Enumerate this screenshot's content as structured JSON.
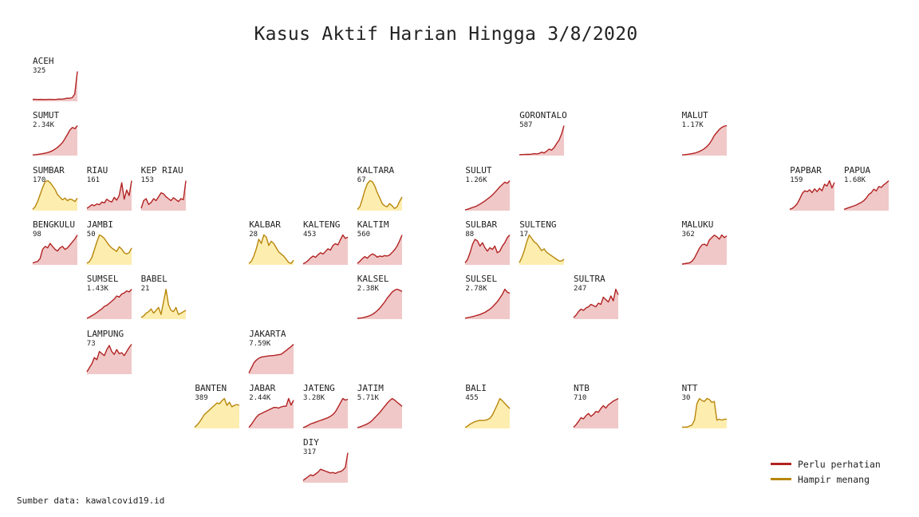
{
  "title": "Kasus Aktif Harian Hingga 3/8/2020",
  "source": "Sumber data: kawalcovid19.id",
  "colors": {
    "perhatian_line": "#b22222",
    "perhatian_fill": "#f0c8c8",
    "menang_line": "#b8860b",
    "menang_fill": "#fdeeb0"
  },
  "legend": [
    {
      "label": "Perlu perhatian",
      "status": "perhatian"
    },
    {
      "label": "Hampir menang",
      "status": "menang"
    }
  ],
  "chart_data": {
    "type": "area",
    "layout": "small multiples arranged as a tile map of Indonesian provinces",
    "title": "Kasus Aktif Harian Hingga 3/8/2020",
    "grid": false,
    "legend_position": "bottom-right",
    "series": [
      {
        "name": "ACEH",
        "value_label": "325",
        "status": "perhatian",
        "grid_col": 0,
        "grid_row": 0,
        "values": [
          18,
          17,
          16,
          17,
          16,
          16,
          17,
          17,
          16,
          17,
          20,
          19,
          23,
          30,
          29,
          35,
          75,
          325
        ]
      },
      {
        "name": "SUMUT",
        "value_label": "2.34K",
        "status": "perhatian",
        "grid_col": 0,
        "grid_row": 1,
        "values": [
          20,
          40,
          60,
          90,
          120,
          160,
          210,
          270,
          360,
          480,
          620,
          800,
          1000,
          1300,
          1650,
          2000,
          2200,
          2100,
          2340
        ]
      },
      {
        "name": "GORONTALO",
        "value_label": "587",
        "status": "perhatian",
        "grid_col": 9,
        "grid_row": 1,
        "values": [
          10,
          12,
          15,
          18,
          16,
          20,
          30,
          25,
          35,
          60,
          45,
          80,
          120,
          100,
          150,
          230,
          300,
          420,
          587
        ]
      },
      {
        "name": "MALUT",
        "value_label": "1.17K",
        "status": "perhatian",
        "grid_col": 12,
        "grid_row": 1,
        "values": [
          10,
          20,
          30,
          45,
          60,
          80,
          110,
          150,
          200,
          260,
          340,
          450,
          600,
          780,
          900,
          1020,
          1100,
          1150,
          1170
        ]
      },
      {
        "name": "SUMBAR",
        "value_label": "170",
        "status": "menang",
        "grid_col": 0,
        "grid_row": 2,
        "values": [
          5,
          20,
          50,
          90,
          130,
          165,
          170,
          160,
          140,
          120,
          90,
          75,
          60,
          70,
          55,
          65,
          60,
          50,
          70
        ]
      },
      {
        "name": "RIAU",
        "value_label": "161",
        "status": "perhatian",
        "grid_col": 1,
        "grid_row": 2,
        "values": [
          10,
          20,
          30,
          25,
          35,
          30,
          45,
          40,
          60,
          50,
          45,
          70,
          55,
          80,
          150,
          60,
          110,
          80,
          161
        ]
      },
      {
        "name": "KEP RIAU",
        "value_label": "153",
        "status": "perhatian",
        "grid_col": 2,
        "grid_row": 2,
        "values": [
          10,
          50,
          60,
          30,
          40,
          60,
          50,
          70,
          90,
          85,
          70,
          60,
          50,
          65,
          55,
          45,
          60,
          55,
          153
        ]
      },
      {
        "name": "KALTARA",
        "value_label": "67",
        "status": "menang",
        "grid_col": 6,
        "grid_row": 2,
        "values": [
          2,
          8,
          25,
          45,
          60,
          67,
          65,
          55,
          40,
          28,
          15,
          10,
          8,
          15,
          10,
          4,
          8,
          20,
          30
        ]
      },
      {
        "name": "SULUT",
        "value_label": "1.26K",
        "status": "perhatian",
        "grid_col": 8,
        "grid_row": 2,
        "values": [
          20,
          40,
          80,
          120,
          150,
          200,
          260,
          330,
          400,
          480,
          560,
          650,
          760,
          880,
          1000,
          1100,
          1200,
          1150,
          1260
        ]
      },
      {
        "name": "PAPBAR",
        "value_label": "159",
        "status": "perhatian",
        "grid_col": 14,
        "grid_row": 2,
        "values": [
          5,
          10,
          20,
          35,
          60,
          90,
          105,
          100,
          110,
          95,
          115,
          100,
          118,
          105,
          140,
          130,
          159,
          120,
          150
        ]
      },
      {
        "name": "PAPUA",
        "value_label": "1.68K",
        "status": "perhatian",
        "grid_col": 15,
        "grid_row": 2,
        "values": [
          50,
          100,
          150,
          200,
          250,
          300,
          380,
          450,
          550,
          700,
          900,
          1000,
          1200,
          1100,
          1350,
          1300,
          1450,
          1550,
          1680
        ]
      },
      {
        "name": "BENGKULU",
        "value_label": "98",
        "status": "perhatian",
        "grid_col": 0,
        "grid_row": 3,
        "values": [
          5,
          8,
          10,
          20,
          50,
          60,
          55,
          70,
          60,
          50,
          45,
          55,
          60,
          50,
          55,
          65,
          75,
          85,
          98
        ]
      },
      {
        "name": "JAMBI",
        "value_label": "50",
        "status": "menang",
        "grid_col": 1,
        "grid_row": 3,
        "values": [
          2,
          5,
          12,
          25,
          38,
          50,
          48,
          44,
          38,
          32,
          28,
          25,
          22,
          30,
          26,
          20,
          18,
          20,
          28
        ]
      },
      {
        "name": "KALBAR",
        "value_label": "28",
        "status": "menang",
        "grid_col": 4,
        "grid_row": 3,
        "values": [
          1,
          3,
          8,
          15,
          24,
          20,
          28,
          26,
          18,
          22,
          20,
          16,
          12,
          10,
          8,
          5,
          2,
          1,
          4
        ]
      },
      {
        "name": "KALTENG",
        "value_label": "453",
        "status": "perhatian",
        "grid_col": 5,
        "grid_row": 3,
        "values": [
          10,
          30,
          60,
          100,
          130,
          110,
          150,
          180,
          160,
          200,
          240,
          220,
          290,
          320,
          300,
          380,
          453,
          400,
          420
        ]
      },
      {
        "name": "KALTIM",
        "value_label": "560",
        "status": "perhatian",
        "grid_col": 6,
        "grid_row": 3,
        "values": [
          20,
          60,
          110,
          150,
          120,
          170,
          200,
          180,
          140,
          160,
          150,
          170,
          160,
          180,
          230,
          280,
          350,
          450,
          560
        ]
      },
      {
        "name": "SULBAR",
        "value_label": "88",
        "status": "perhatian",
        "grid_col": 8,
        "grid_row": 3,
        "values": [
          5,
          15,
          35,
          60,
          75,
          70,
          55,
          65,
          50,
          40,
          50,
          45,
          55,
          35,
          40,
          55,
          65,
          80,
          88
        ]
      },
      {
        "name": "SULTENG",
        "value_label": "17",
        "status": "menang",
        "grid_col": 9,
        "grid_row": 3,
        "values": [
          1,
          4,
          8,
          13,
          17,
          15,
          13,
          12,
          10,
          8,
          9,
          7,
          6,
          5,
          4,
          3,
          2,
          2,
          3
        ]
      },
      {
        "name": "MALUKU",
        "value_label": "362",
        "status": "perhatian",
        "grid_col": 12,
        "grid_row": 3,
        "values": [
          5,
          10,
          15,
          20,
          40,
          80,
          140,
          200,
          240,
          250,
          230,
          300,
          330,
          360,
          340,
          310,
          362,
          330,
          350
        ]
      },
      {
        "name": "SUMSEL",
        "value_label": "1.43K",
        "status": "perhatian",
        "grid_col": 1,
        "grid_row": 4,
        "values": [
          20,
          80,
          150,
          220,
          300,
          400,
          480,
          600,
          650,
          750,
          850,
          950,
          1100,
          1050,
          1200,
          1250,
          1350,
          1300,
          1430
        ]
      },
      {
        "name": "BABEL",
        "value_label": "21",
        "status": "menang",
        "grid_col": 2,
        "grid_row": 4,
        "values": [
          1,
          2,
          4,
          5,
          7,
          4,
          6,
          8,
          3,
          12,
          21,
          10,
          6,
          5,
          8,
          3,
          4,
          5,
          6
        ]
      },
      {
        "name": "KALSEL",
        "value_label": "2.38K",
        "status": "perhatian",
        "grid_col": 6,
        "grid_row": 4,
        "values": [
          30,
          50,
          80,
          120,
          180,
          250,
          350,
          480,
          650,
          850,
          1100,
          1350,
          1650,
          1900,
          2150,
          2300,
          2380,
          2300,
          2200
        ]
      },
      {
        "name": "SULSEL",
        "value_label": "2.78K",
        "status": "perhatian",
        "grid_col": 8,
        "grid_row": 4,
        "values": [
          50,
          100,
          150,
          200,
          260,
          330,
          400,
          500,
          600,
          750,
          900,
          1100,
          1350,
          1600,
          1950,
          2300,
          2780,
          2500,
          2400
        ]
      },
      {
        "name": "SULTRA",
        "value_label": "247",
        "status": "perhatian",
        "grid_col": 10,
        "grid_row": 4,
        "values": [
          10,
          30,
          60,
          80,
          70,
          90,
          100,
          120,
          110,
          100,
          130,
          120,
          180,
          160,
          140,
          190,
          150,
          247,
          200
        ]
      },
      {
        "name": "LAMPUNG",
        "value_label": "73",
        "status": "perhatian",
        "grid_col": 1,
        "grid_row": 5,
        "values": [
          5,
          15,
          25,
          40,
          35,
          55,
          50,
          45,
          60,
          70,
          55,
          48,
          60,
          50,
          52,
          45,
          55,
          65,
          73
        ]
      },
      {
        "name": "JAKARTA",
        "value_label": "7.59K",
        "status": "perhatian",
        "grid_col": 4,
        "grid_row": 5,
        "values": [
          200,
          1500,
          2800,
          3500,
          4000,
          4300,
          4400,
          4500,
          4600,
          4650,
          4700,
          4800,
          4900,
          5000,
          5500,
          6000,
          6500,
          7000,
          7590
        ]
      },
      {
        "name": "BANTEN",
        "value_label": "389",
        "status": "menang",
        "grid_col": 3,
        "grid_row": 6,
        "values": [
          10,
          40,
          80,
          130,
          180,
          210,
          240,
          270,
          300,
          330,
          320,
          360,
          389,
          300,
          340,
          280,
          300,
          310,
          300
        ]
      },
      {
        "name": "JABAR",
        "value_label": "2.44K",
        "status": "perhatian",
        "grid_col": 4,
        "grid_row": 6,
        "values": [
          50,
          300,
          600,
          900,
          1100,
          1200,
          1300,
          1400,
          1500,
          1600,
          1700,
          1700,
          1650,
          1750,
          1800,
          1800,
          2440,
          1900,
          2300
        ]
      },
      {
        "name": "JATENG",
        "value_label": "3.28K",
        "status": "perhatian",
        "grid_col": 5,
        "grid_row": 6,
        "values": [
          50,
          150,
          300,
          450,
          550,
          650,
          750,
          850,
          950,
          1050,
          1150,
          1300,
          1500,
          1800,
          2300,
          2800,
          3280,
          3100,
          3200
        ]
      },
      {
        "name": "JATIM",
        "value_label": "5.71K",
        "status": "perhatian",
        "grid_col": 6,
        "grid_row": 6,
        "values": [
          100,
          200,
          400,
          600,
          800,
          1100,
          1500,
          2000,
          2500,
          3000,
          3600,
          4200,
          4800,
          5300,
          5710,
          5400,
          5000,
          4600,
          4200
        ]
      },
      {
        "name": "BALI",
        "value_label": "455",
        "status": "menang",
        "grid_col": 8,
        "grid_row": 6,
        "values": [
          10,
          30,
          60,
          80,
          100,
          110,
          120,
          115,
          120,
          130,
          150,
          200,
          280,
          360,
          455,
          420,
          380,
          340,
          300
        ]
      },
      {
        "name": "NTB",
        "value_label": "710",
        "status": "perhatian",
        "grid_col": 10,
        "grid_row": 6,
        "values": [
          20,
          80,
          160,
          250,
          220,
          300,
          350,
          280,
          330,
          400,
          380,
          470,
          540,
          480,
          560,
          600,
          650,
          680,
          710
        ]
      },
      {
        "name": "NTT",
        "value_label": "30",
        "status": "menang",
        "grid_col": 12,
        "grid_row": 6,
        "values": [
          1,
          1,
          1,
          2,
          3,
          8,
          25,
          30,
          28,
          27,
          30,
          29,
          26,
          27,
          8,
          9,
          8,
          9,
          9
        ]
      },
      {
        "name": "DIY",
        "value_label": "317",
        "status": "perhatian",
        "grid_col": 5,
        "grid_row": 7,
        "values": [
          20,
          40,
          60,
          80,
          70,
          90,
          110,
          140,
          130,
          120,
          110,
          100,
          105,
          95,
          110,
          115,
          130,
          160,
          317
        ]
      }
    ]
  }
}
